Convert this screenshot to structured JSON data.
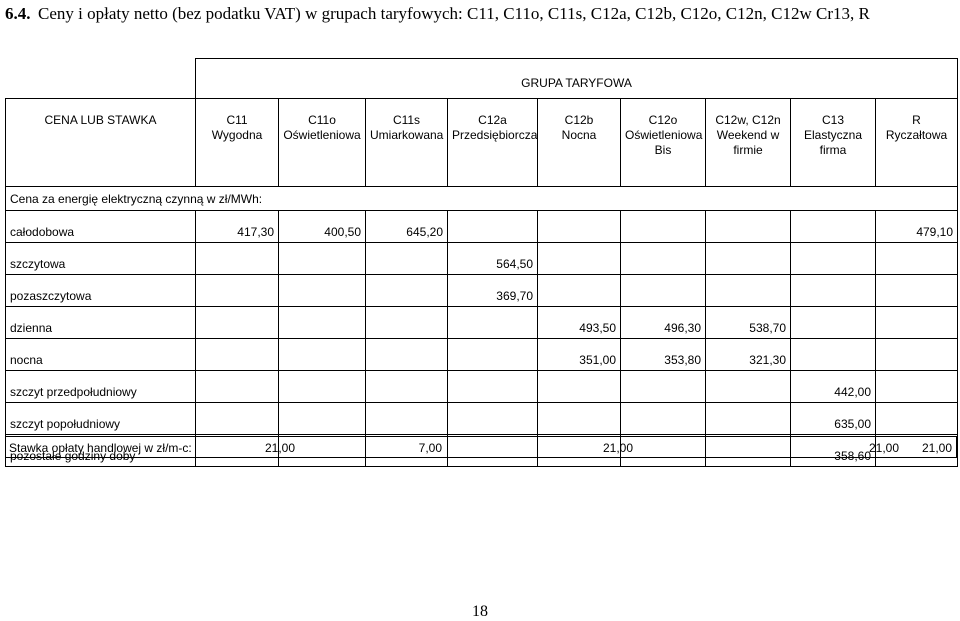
{
  "heading": {
    "number": "6.4.",
    "text": "Ceny i opłaty netto (bez podatku VAT) w grupach taryfowych: C11, C11o, C11s, C12a, C12b, C12o, C12n, C12w Cr13, R"
  },
  "table": {
    "group_header": "GRUPA TARYFOWA",
    "corner": "CENA LUB STAWKA",
    "columns": [
      [
        "C11",
        "Wygodna"
      ],
      [
        "C11o",
        "Oświetleniowa"
      ],
      [
        "C11s",
        "Umiarkowana"
      ],
      [
        "C12a",
        "Przedsiębiorcza"
      ],
      [
        "C12b",
        "Nocna"
      ],
      [
        "C12o",
        "Oświetleniowa",
        "Bis"
      ],
      [
        "C12w, C12n",
        "Weekend w",
        "firmie"
      ],
      [
        "C13",
        "Elastyczna",
        "firma"
      ],
      [
        "R",
        "Ryczałtowa"
      ]
    ],
    "section": "Cena za energię elektryczną czynną w zł/MWh:",
    "rows": [
      {
        "label": "całodobowa",
        "cells": [
          "417,30",
          "400,50",
          "645,20",
          null,
          null,
          null,
          null,
          null,
          "479,10"
        ]
      },
      {
        "label": "szczytowa",
        "cells": [
          null,
          null,
          null,
          "564,50",
          null,
          null,
          null,
          null,
          null
        ]
      },
      {
        "label": "pozaszczytowa",
        "cells": [
          null,
          null,
          null,
          "369,70",
          null,
          null,
          null,
          null,
          null
        ]
      },
      {
        "label": "dzienna",
        "cells": [
          null,
          null,
          null,
          null,
          "493,50",
          "496,30",
          "538,70",
          null,
          null
        ]
      },
      {
        "label": "nocna",
        "cells": [
          null,
          null,
          null,
          null,
          "351,00",
          "353,80",
          "321,30",
          null,
          null
        ]
      },
      {
        "label": "szczyt przedpołudniowy",
        "cells": [
          null,
          null,
          null,
          null,
          null,
          null,
          null,
          "442,00",
          null
        ]
      },
      {
        "label": "szczyt popołudniowy",
        "cells": [
          null,
          null,
          null,
          null,
          null,
          null,
          null,
          "635,00",
          null
        ]
      },
      {
        "label": "pozostałe godziny doby",
        "cells": [
          null,
          null,
          null,
          null,
          null,
          null,
          null,
          "358,60",
          null
        ]
      }
    ],
    "fee": {
      "label": "Stawka opłaty handlowej w zł/m-c:",
      "values": [
        "21,00",
        "7,00",
        "21,00",
        "21,00",
        "21,00"
      ]
    }
  },
  "page_number": "18"
}
